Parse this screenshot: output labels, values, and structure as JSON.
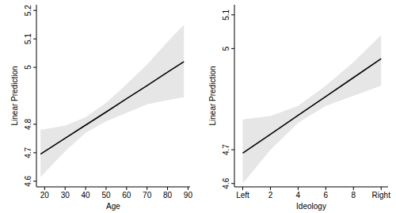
{
  "chart_data": [
    {
      "type": "line",
      "x_label": "Age",
      "y_label": "Linear Prediction",
      "x": [
        18,
        30,
        40,
        50,
        60,
        70,
        80,
        88
      ],
      "series": [
        {
          "color": "#000000",
          "values": [
            4.695,
            4.751,
            4.797,
            4.843,
            4.89,
            4.936,
            4.983,
            5.02
          ],
          "lower": [
            4.615,
            4.705,
            4.77,
            4.81,
            4.84,
            4.87,
            4.885,
            4.895
          ],
          "upper": [
            4.78,
            4.795,
            4.825,
            4.875,
            4.94,
            5.01,
            5.09,
            5.15
          ]
        }
      ],
      "xlim": [
        16,
        91
      ],
      "xticks": [
        20,
        30,
        40,
        50,
        60,
        70,
        80,
        90
      ],
      "ylim": [
        4.58,
        5.22
      ],
      "yticks": [
        4.6,
        4.7,
        4.8,
        5,
        5.1,
        5.2
      ],
      "grid": false
    },
    {
      "type": "line",
      "x_label": "Ideology",
      "y_label": "Linear Prediction",
      "x": [
        0,
        2,
        4,
        6,
        8,
        10
      ],
      "series": [
        {
          "color": "#000000",
          "values": [
            4.69,
            4.746,
            4.802,
            4.858,
            4.914,
            4.97
          ],
          "lower": [
            4.6,
            4.7,
            4.78,
            4.83,
            4.86,
            4.89
          ],
          "upper": [
            4.79,
            4.8,
            4.83,
            4.89,
            4.96,
            5.04
          ]
        }
      ],
      "xlim": [
        -0.6,
        10.5
      ],
      "xticks": [
        {
          "value": 0,
          "label": "Left"
        },
        2,
        4,
        6,
        8,
        {
          "value": 10,
          "label": "Right"
        }
      ],
      "ylim": [
        4.59,
        5.13
      ],
      "yticks": [
        4.6,
        4.7,
        5,
        5.1
      ],
      "grid": false
    }
  ]
}
